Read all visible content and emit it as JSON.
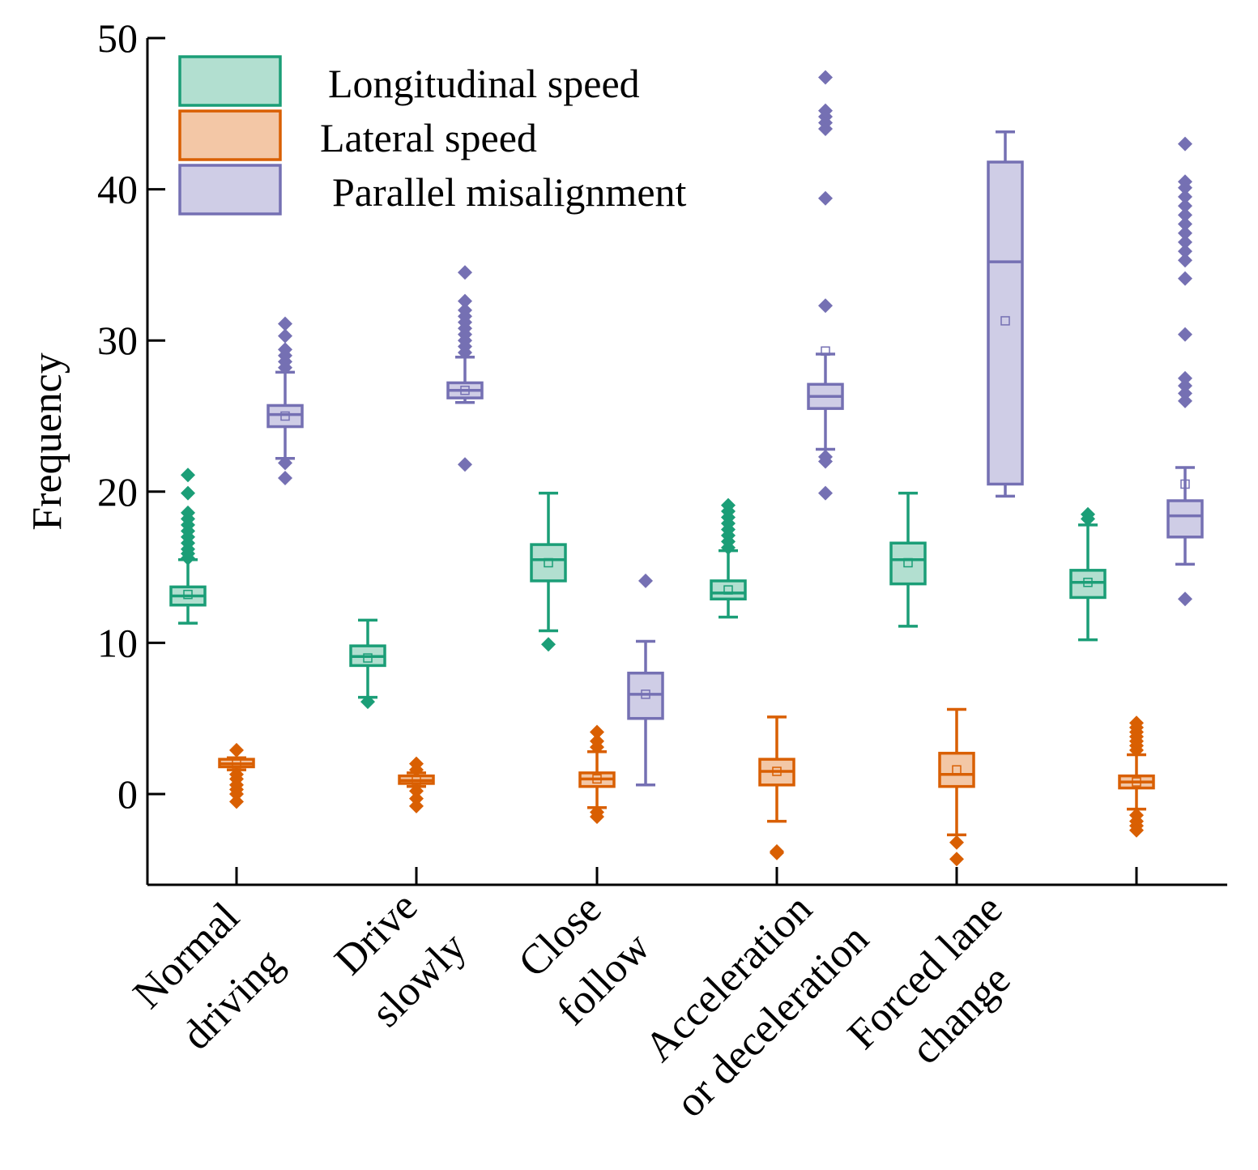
{
  "chart_data": {
    "type": "box",
    "title": "",
    "xlabel": "",
    "ylabel": "Frequency",
    "ylim": [
      -6,
      50
    ],
    "yticks": [
      0,
      10,
      20,
      30,
      40,
      50
    ],
    "grid": false,
    "legend_position": "top-left",
    "categories": [
      [
        "Normal",
        "driving"
      ],
      [
        "Drive",
        "slowly"
      ],
      [
        "Close",
        "follow"
      ],
      [
        "Acceleration",
        "or deceleration"
      ],
      [
        "Forced lane",
        "change"
      ],
      []
    ],
    "series": [
      {
        "name": "Longitudinal speed",
        "color": "#1b9e77",
        "fill": "#b2dfd0",
        "boxes": [
          {
            "low": 11.3,
            "q1": 12.5,
            "median": 13.1,
            "q3": 13.7,
            "high": 15.5,
            "mean": 13.2,
            "outliers": [
              15.6,
              15.9,
              16.2,
              16.6,
              17.0,
              17.4,
              17.8,
              18.2,
              18.6,
              19.9,
              21.1
            ]
          },
          {
            "low": 6.4,
            "q1": 8.5,
            "median": 9.1,
            "q3": 9.8,
            "high": 11.5,
            "mean": 9.0,
            "outliers": [
              6.1
            ]
          },
          {
            "low": 10.8,
            "q1": 14.1,
            "median": 15.5,
            "q3": 16.5,
            "high": 19.9,
            "mean": 15.3,
            "outliers": [
              9.9
            ]
          },
          {
            "low": 11.7,
            "q1": 12.9,
            "median": 13.3,
            "q3": 14.1,
            "high": 16.1,
            "mean": 13.5,
            "outliers": [
              16.3,
              16.7,
              17.1,
              17.5,
              17.9,
              18.3,
              18.7,
              19.1
            ]
          },
          {
            "low": 11.1,
            "q1": 13.9,
            "median": 15.5,
            "q3": 16.6,
            "high": 19.9,
            "mean": 15.3,
            "outliers": []
          },
          {
            "low": 10.2,
            "q1": 13.0,
            "median": 14.0,
            "q3": 14.8,
            "high": 17.8,
            "mean": 14.0,
            "outliers": [
              18.2,
              18.5
            ]
          }
        ]
      },
      {
        "name": "Lateral speed",
        "color": "#d95f02",
        "fill": "#f3c7a6",
        "boxes": [
          {
            "low": 1.6,
            "q1": 1.8,
            "median": 2.0,
            "q3": 2.3,
            "high": 2.4,
            "mean": 2.0,
            "outliers": [
              2.9,
              1.3,
              1.0,
              0.6,
              0.3,
              0.0,
              -0.5
            ]
          },
          {
            "low": 0.5,
            "q1": 0.7,
            "median": 0.9,
            "q3": 1.2,
            "high": 1.4,
            "mean": 0.9,
            "outliers": [
              2.0,
              1.6,
              0.2,
              -0.3,
              -0.8
            ]
          },
          {
            "low": -0.9,
            "q1": 0.5,
            "median": 1.0,
            "q3": 1.4,
            "high": 2.8,
            "mean": 1.0,
            "outliers": [
              3.1,
              3.5,
              4.1,
              -1.2,
              -1.5
            ]
          },
          {
            "low": -1.8,
            "q1": 0.6,
            "median": 1.5,
            "q3": 2.3,
            "high": 5.1,
            "mean": 1.5,
            "outliers": [
              -3.8,
              -3.9
            ]
          },
          {
            "low": -2.7,
            "q1": 0.5,
            "median": 1.3,
            "q3": 2.7,
            "high": 5.6,
            "mean": 1.6,
            "outliers": [
              -3.2,
              -4.3
            ]
          },
          {
            "low": -1.0,
            "q1": 0.4,
            "median": 0.8,
            "q3": 1.2,
            "high": 2.6,
            "mean": 0.8,
            "outliers": [
              2.9,
              3.2,
              3.5,
              3.8,
              4.1,
              4.4,
              4.7,
              -1.4,
              -1.8,
              -2.1,
              -2.4
            ]
          }
        ]
      },
      {
        "name": "Parallel misalignment",
        "color": "#7570b3",
        "fill": "#cfcde6",
        "boxes": [
          {
            "low": 22.2,
            "q1": 24.3,
            "median": 25.1,
            "q3": 25.7,
            "high": 27.9,
            "mean": 25.0,
            "outliers": [
              28.2,
              28.6,
              29.0,
              29.4,
              30.3,
              31.1,
              21.9,
              20.9
            ]
          },
          {
            "low": 25.9,
            "q1": 26.2,
            "median": 26.7,
            "q3": 27.2,
            "high": 28.9,
            "mean": 26.7,
            "outliers": [
              29.2,
              29.6,
              30.0,
              30.4,
              30.8,
              31.2,
              31.6,
              32.0,
              32.6,
              34.5,
              21.8
            ]
          },
          {
            "low": 0.6,
            "q1": 5.0,
            "median": 6.6,
            "q3": 8.0,
            "high": 10.1,
            "mean": 6.6,
            "outliers": [
              14.1
            ]
          },
          {
            "low": 22.8,
            "q1": 25.5,
            "median": 26.3,
            "q3": 27.1,
            "high": 29.1,
            "mean": 29.3,
            "outliers": [
              32.3,
              39.4,
              44.0,
              44.4,
              44.8,
              45.2,
              47.4,
              22.3,
              22.0,
              19.9
            ]
          },
          {
            "low": 19.7,
            "q1": 20.5,
            "median": 35.2,
            "q3": 41.8,
            "high": 43.8,
            "mean": 31.3,
            "outliers": []
          },
          {
            "low": 15.2,
            "q1": 17.0,
            "median": 18.4,
            "q3": 19.4,
            "high": 21.6,
            "mean": 20.5,
            "outliers": [
              12.9,
              26.0,
              26.5,
              27.0,
              27.5,
              30.4,
              34.1,
              35.3,
              35.9,
              36.5,
              37.1,
              37.7,
              38.3,
              38.9,
              39.5,
              40.1,
              40.5,
              43.0
            ]
          }
        ]
      }
    ]
  }
}
